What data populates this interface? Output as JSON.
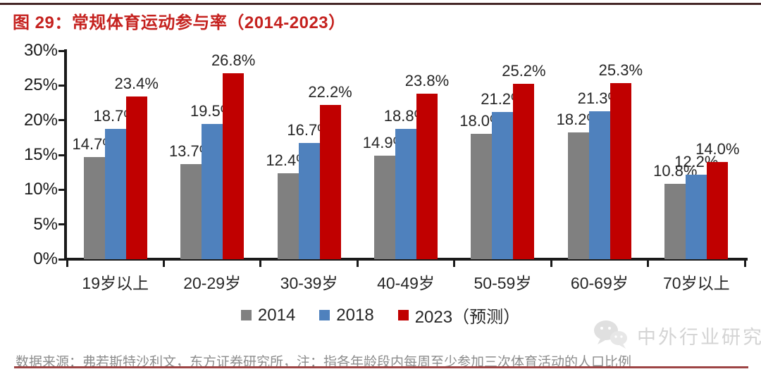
{
  "title": "图 29：常规体育运动参与率（2014-2023）",
  "chart_data": {
    "type": "bar",
    "categories": [
      "19岁以上",
      "20-29岁",
      "30-39岁",
      "40-49岁",
      "50-59岁",
      "60-69岁",
      "70岁以上"
    ],
    "series": [
      {
        "name": "2014",
        "color": "#808080",
        "values": [
          14.7,
          13.7,
          12.4,
          14.9,
          18.0,
          18.2,
          10.8
        ]
      },
      {
        "name": "2018",
        "color": "#4F81BD",
        "values": [
          18.7,
          19.5,
          16.7,
          18.8,
          21.2,
          21.3,
          12.2
        ]
      },
      {
        "name": "2023（预测）",
        "color": "#C00000",
        "values": [
          23.4,
          26.8,
          22.2,
          23.8,
          25.2,
          25.3,
          14.0
        ]
      }
    ],
    "title": "常规体育运动参与率（2014-2023）",
    "xlabel": "",
    "ylabel": "",
    "ylim": [
      0,
      30
    ],
    "ytick_step": 5,
    "ytick_labels": [
      "0%",
      "5%",
      "10%",
      "15%",
      "20%",
      "25%",
      "30%"
    ],
    "value_suffix": "%",
    "grid": false,
    "legend_position": "bottom"
  },
  "footer": {
    "source_note": "数据来源：弗若斯特沙利文，东方证券研究所，注：指各年龄段内每周至少参加三次体育活动的人口比例"
  },
  "watermark": {
    "label": "中外行业研究",
    "icon": "wechat-chat-bubbles-icon"
  },
  "colors": {
    "title_red": "#C5221F",
    "bar_red": "#C00000",
    "bar_blue": "#4F81BD",
    "bar_gray": "#808080",
    "axis_black": "#1A1A1A",
    "source_gray": "#8C8C8C",
    "top_rule": "#452727",
    "bottom_rule": "#9D4444",
    "watermark_gray": "#D4D4D4"
  }
}
